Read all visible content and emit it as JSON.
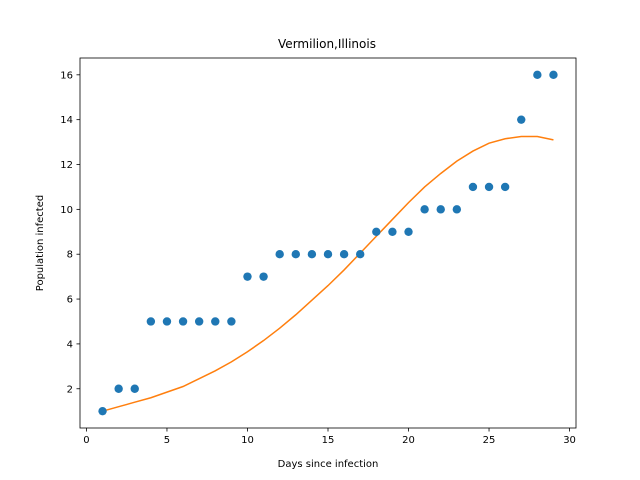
{
  "chart_data": {
    "type": "scatter",
    "title": "Vermilion,Illinois",
    "xlabel": "Days since infection",
    "ylabel": "Population infected",
    "xlim": [
      -0.4,
      30.4
    ],
    "ylim": [
      0.25,
      16.75
    ],
    "xticks": [
      0,
      5,
      10,
      15,
      20,
      25,
      30
    ],
    "yticks": [
      2,
      4,
      6,
      8,
      10,
      12,
      14,
      16
    ],
    "grid": false,
    "series": [
      {
        "kind": "scatter",
        "color": "#1f77b4",
        "x": [
          1,
          2,
          3,
          4,
          5,
          6,
          7,
          8,
          9,
          10,
          11,
          12,
          13,
          14,
          15,
          16,
          17,
          18,
          19,
          20,
          21,
          22,
          23,
          24,
          25,
          26,
          27,
          28,
          29
        ],
        "y": [
          1,
          2,
          2,
          5,
          5,
          5,
          5,
          5,
          5,
          7,
          7,
          8,
          8,
          8,
          8,
          8,
          8,
          9,
          9,
          9,
          10,
          10,
          10,
          11,
          11,
          11,
          14,
          16,
          16
        ]
      },
      {
        "kind": "line",
        "color": "#ff7f0e",
        "x": [
          1,
          2,
          3,
          4,
          5,
          6,
          7,
          8,
          9,
          10,
          11,
          12,
          13,
          14,
          15,
          16,
          17,
          18,
          19,
          20,
          21,
          22,
          23,
          24,
          25,
          26,
          27,
          28,
          29
        ],
        "y": [
          1.0,
          1.2,
          1.4,
          1.6,
          1.85,
          2.1,
          2.45,
          2.8,
          3.2,
          3.65,
          4.15,
          4.7,
          5.3,
          5.95,
          6.6,
          7.3,
          8.05,
          8.8,
          9.55,
          10.3,
          11.0,
          11.6,
          12.15,
          12.6,
          12.95,
          13.15,
          13.25,
          13.25,
          13.1
        ]
      }
    ]
  }
}
